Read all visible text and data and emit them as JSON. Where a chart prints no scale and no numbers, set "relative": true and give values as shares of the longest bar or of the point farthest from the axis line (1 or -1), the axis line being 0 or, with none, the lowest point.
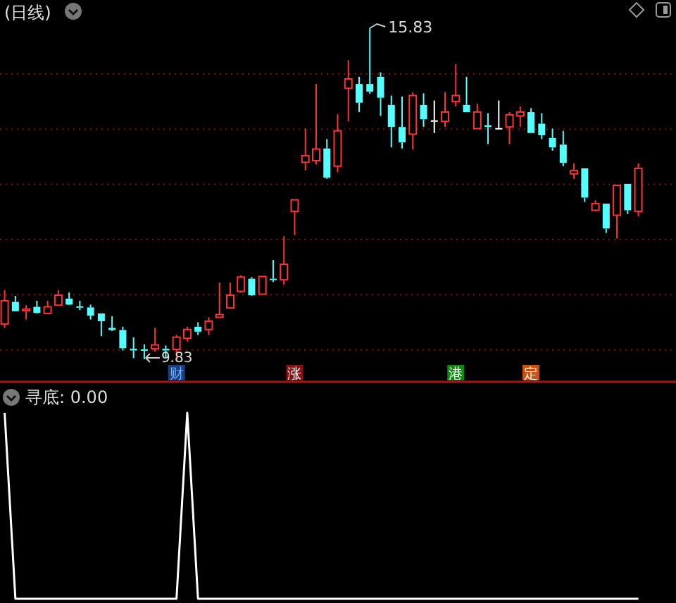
{
  "chart_data": [
    {
      "type": "candlestick",
      "title": "(日线)",
      "categories": [
        null,
        null,
        null,
        null,
        null,
        null,
        null,
        null,
        null,
        null,
        null,
        null,
        null,
        null,
        null,
        null,
        null,
        null,
        null,
        null,
        null,
        null,
        null,
        null,
        null,
        null,
        null,
        null,
        null,
        null,
        null,
        null,
        null,
        null,
        null,
        null,
        null,
        null,
        null,
        null,
        null,
        null,
        null,
        null,
        null,
        null,
        null,
        null,
        null,
        null,
        null,
        null,
        null,
        null,
        null,
        null,
        null,
        null,
        null,
        null
      ],
      "ohlc": [
        [
          10.47,
          11.08,
          10.4,
          10.89
        ],
        [
          10.87,
          10.98,
          10.7,
          10.7
        ],
        [
          10.71,
          10.81,
          10.55,
          10.74
        ],
        [
          10.78,
          10.89,
          10.66,
          10.67
        ],
        [
          10.66,
          10.89,
          10.66,
          10.78
        ],
        [
          10.81,
          11.08,
          10.81,
          10.99
        ],
        [
          10.93,
          11.04,
          10.81,
          10.82
        ],
        [
          10.79,
          10.89,
          10.72,
          10.77
        ],
        [
          10.77,
          10.82,
          10.55,
          10.62
        ],
        [
          10.66,
          10.66,
          10.25,
          10.52
        ],
        [
          10.4,
          10.61,
          10.34,
          10.36
        ],
        [
          10.36,
          10.42,
          9.99,
          10.03
        ],
        [
          10.02,
          10.23,
          9.85,
          9.99
        ],
        [
          10.01,
          10.1,
          9.83,
          10.0
        ],
        [
          10.02,
          10.4,
          9.97,
          10.09
        ],
        [
          10.02,
          10.08,
          9.86,
          9.99
        ],
        [
          10.01,
          10.27,
          9.87,
          10.23
        ],
        [
          10.21,
          10.42,
          10.15,
          10.37
        ],
        [
          10.42,
          10.5,
          10.27,
          10.33
        ],
        [
          10.37,
          10.59,
          10.27,
          10.52
        ],
        [
          10.59,
          11.22,
          10.59,
          10.64
        ],
        [
          10.76,
          11.22,
          10.76,
          10.99
        ],
        [
          11.06,
          11.35,
          11.04,
          11.32
        ],
        [
          11.29,
          11.32,
          10.98,
          10.99
        ],
        [
          11.01,
          11.33,
          11.01,
          11.33
        ],
        [
          11.29,
          11.63,
          11.23,
          11.27
        ],
        [
          11.27,
          12.06,
          11.18,
          11.55
        ],
        [
          12.51,
          12.72,
          12.08,
          12.72
        ],
        [
          13.4,
          14.01,
          13.25,
          13.52
        ],
        [
          13.43,
          14.82,
          13.36,
          13.64
        ],
        [
          13.65,
          13.82,
          13.1,
          13.12
        ],
        [
          13.33,
          14.27,
          13.22,
          13.97
        ],
        [
          14.74,
          15.25,
          14.14,
          14.91
        ],
        [
          14.82,
          14.95,
          14.31,
          14.48
        ],
        [
          14.82,
          15.83,
          14.64,
          14.68
        ],
        [
          14.95,
          15.03,
          14.24,
          14.57
        ],
        [
          14.44,
          14.61,
          13.67,
          14.04
        ],
        [
          14.04,
          14.59,
          13.65,
          13.76
        ],
        [
          13.91,
          14.67,
          13.63,
          14.61
        ],
        [
          14.44,
          14.65,
          14.04,
          14.18
        ],
        [
          14.16,
          14.52,
          13.93,
          14.16
        ],
        [
          14.14,
          14.67,
          14.04,
          14.31
        ],
        [
          14.5,
          15.18,
          14.41,
          14.61
        ],
        [
          14.44,
          14.95,
          14.31,
          14.31
        ],
        [
          14.01,
          14.46,
          14.01,
          14.31
        ],
        [
          14.07,
          14.29,
          13.73,
          14.04
        ],
        [
          14.02,
          14.52,
          13.99,
          14.02
        ],
        [
          14.04,
          14.31,
          13.73,
          14.26
        ],
        [
          14.24,
          14.41,
          14.04,
          14.31
        ],
        [
          14.31,
          14.38,
          13.93,
          13.93
        ],
        [
          14.1,
          14.29,
          13.82,
          13.89
        ],
        [
          13.84,
          14.01,
          13.61,
          13.67
        ],
        [
          13.72,
          13.97,
          13.33,
          13.39
        ],
        [
          13.19,
          13.38,
          13.1,
          13.25
        ],
        [
          13.29,
          13.29,
          12.68,
          12.76
        ],
        [
          12.53,
          12.71,
          12.51,
          12.65
        ],
        [
          12.65,
          12.65,
          12.12,
          12.2
        ],
        [
          12.44,
          12.98,
          12.02,
          12.98
        ],
        [
          13.01,
          13.01,
          12.46,
          12.53
        ],
        [
          12.51,
          13.38,
          12.42,
          13.29
        ]
      ],
      "grid": "y",
      "yticks": [
        {
          "value": 10,
          "label": null
        },
        {
          "value": 11,
          "label": null
        },
        {
          "value": 12,
          "label": null
        },
        {
          "value": 13,
          "label": null
        },
        {
          "value": 14,
          "label": null
        },
        {
          "value": 15,
          "label": null
        }
      ],
      "annotations": [
        "15.83",
        "9.83",
        "财",
        "涨",
        "港",
        "定"
      ]
    },
    {
      "type": "line",
      "title": "寻底: 0.00",
      "relative": true,
      "categories": [
        null,
        null,
        null,
        null,
        null,
        null,
        null,
        null,
        null,
        null,
        null,
        null,
        null,
        null,
        null,
        null,
        null,
        null,
        null,
        null,
        null,
        null,
        null,
        null,
        null,
        null,
        null,
        null,
        null,
        null,
        null,
        null,
        null,
        null,
        null,
        null,
        null,
        null,
        null,
        null,
        null,
        null,
        null,
        null,
        null,
        null,
        null,
        null,
        null,
        null,
        null,
        null,
        null,
        null,
        null,
        null,
        null,
        null,
        null,
        null
      ],
      "series": [
        {
          "color": "#ffffff",
          "values": [
            1,
            0,
            0,
            0,
            0,
            0,
            0,
            0,
            0,
            0,
            0,
            0,
            0,
            0,
            0,
            0,
            0,
            1,
            0,
            0,
            0,
            0,
            0,
            0,
            0,
            0,
            0,
            0,
            0,
            0,
            0,
            0,
            0,
            0,
            0,
            0,
            0,
            0,
            0,
            0,
            0,
            0,
            0,
            0,
            0,
            0,
            0,
            0,
            0,
            0,
            0,
            0,
            0,
            0,
            0,
            0,
            0,
            0,
            0,
            0
          ]
        }
      ]
    }
  ]
}
